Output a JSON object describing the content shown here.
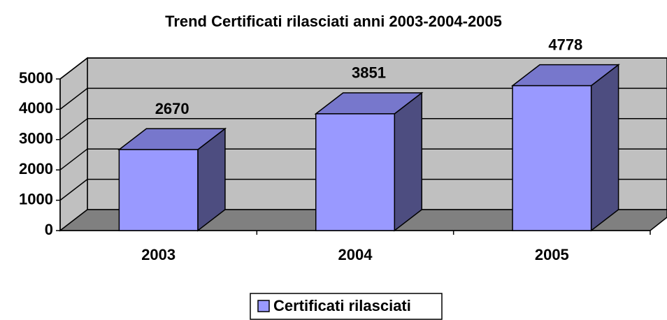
{
  "chart_data": {
    "type": "bar3d",
    "title": "Trend Certificati rilasciati anni 2003-2004-2005",
    "categories": [
      "2003",
      "2004",
      "2005"
    ],
    "series": [
      {
        "name": "Certificati rilasciati",
        "color": "#9999ff",
        "values": [
          2670,
          3851,
          4778
        ]
      }
    ],
    "ylim": [
      0,
      5000
    ],
    "yticks": [
      0,
      1000,
      2000,
      3000,
      4000,
      5000
    ],
    "grid": true,
    "legend": "bottom"
  }
}
